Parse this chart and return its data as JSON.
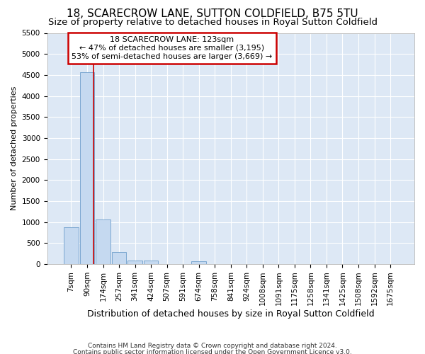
{
  "title": "18, SCARECROW LANE, SUTTON COLDFIELD, B75 5TU",
  "subtitle": "Size of property relative to detached houses in Royal Sutton Coldfield",
  "xlabel": "Distribution of detached houses by size in Royal Sutton Coldfield",
  "ylabel": "Number of detached properties",
  "categories": [
    "7sqm",
    "90sqm",
    "174sqm",
    "257sqm",
    "341sqm",
    "424sqm",
    "507sqm",
    "591sqm",
    "674sqm",
    "758sqm",
    "841sqm",
    "924sqm",
    "1008sqm",
    "1091sqm",
    "1175sqm",
    "1258sqm",
    "1341sqm",
    "1425sqm",
    "1508sqm",
    "1592sqm",
    "1675sqm"
  ],
  "values": [
    880,
    4560,
    1060,
    290,
    90,
    90,
    0,
    0,
    60,
    0,
    0,
    0,
    0,
    0,
    0,
    0,
    0,
    0,
    0,
    0,
    0
  ],
  "bar_color": "#c5d9f0",
  "bar_edge_color": "#7ba7d0",
  "vline_color": "#cc0000",
  "vline_x": 1.38,
  "ylim": [
    0,
    5500
  ],
  "yticks": [
    0,
    500,
    1000,
    1500,
    2000,
    2500,
    3000,
    3500,
    4000,
    4500,
    5000,
    5500
  ],
  "annotation_text": "18 SCARECROW LANE: 123sqm\n← 47% of detached houses are smaller (3,195)\n53% of semi-detached houses are larger (3,669) →",
  "annotation_box_color": "#ffffff",
  "annotation_box_edge_color": "#cc0000",
  "footer1": "Contains HM Land Registry data © Crown copyright and database right 2024.",
  "footer2": "Contains public sector information licensed under the Open Government Licence v3.0.",
  "background_color": "#ffffff",
  "plot_bg_color": "#dde8f5",
  "grid_color": "#ffffff",
  "title_fontsize": 11,
  "subtitle_fontsize": 9.5,
  "tick_fontsize": 7.5,
  "ylabel_fontsize": 8,
  "xlabel_fontsize": 9
}
